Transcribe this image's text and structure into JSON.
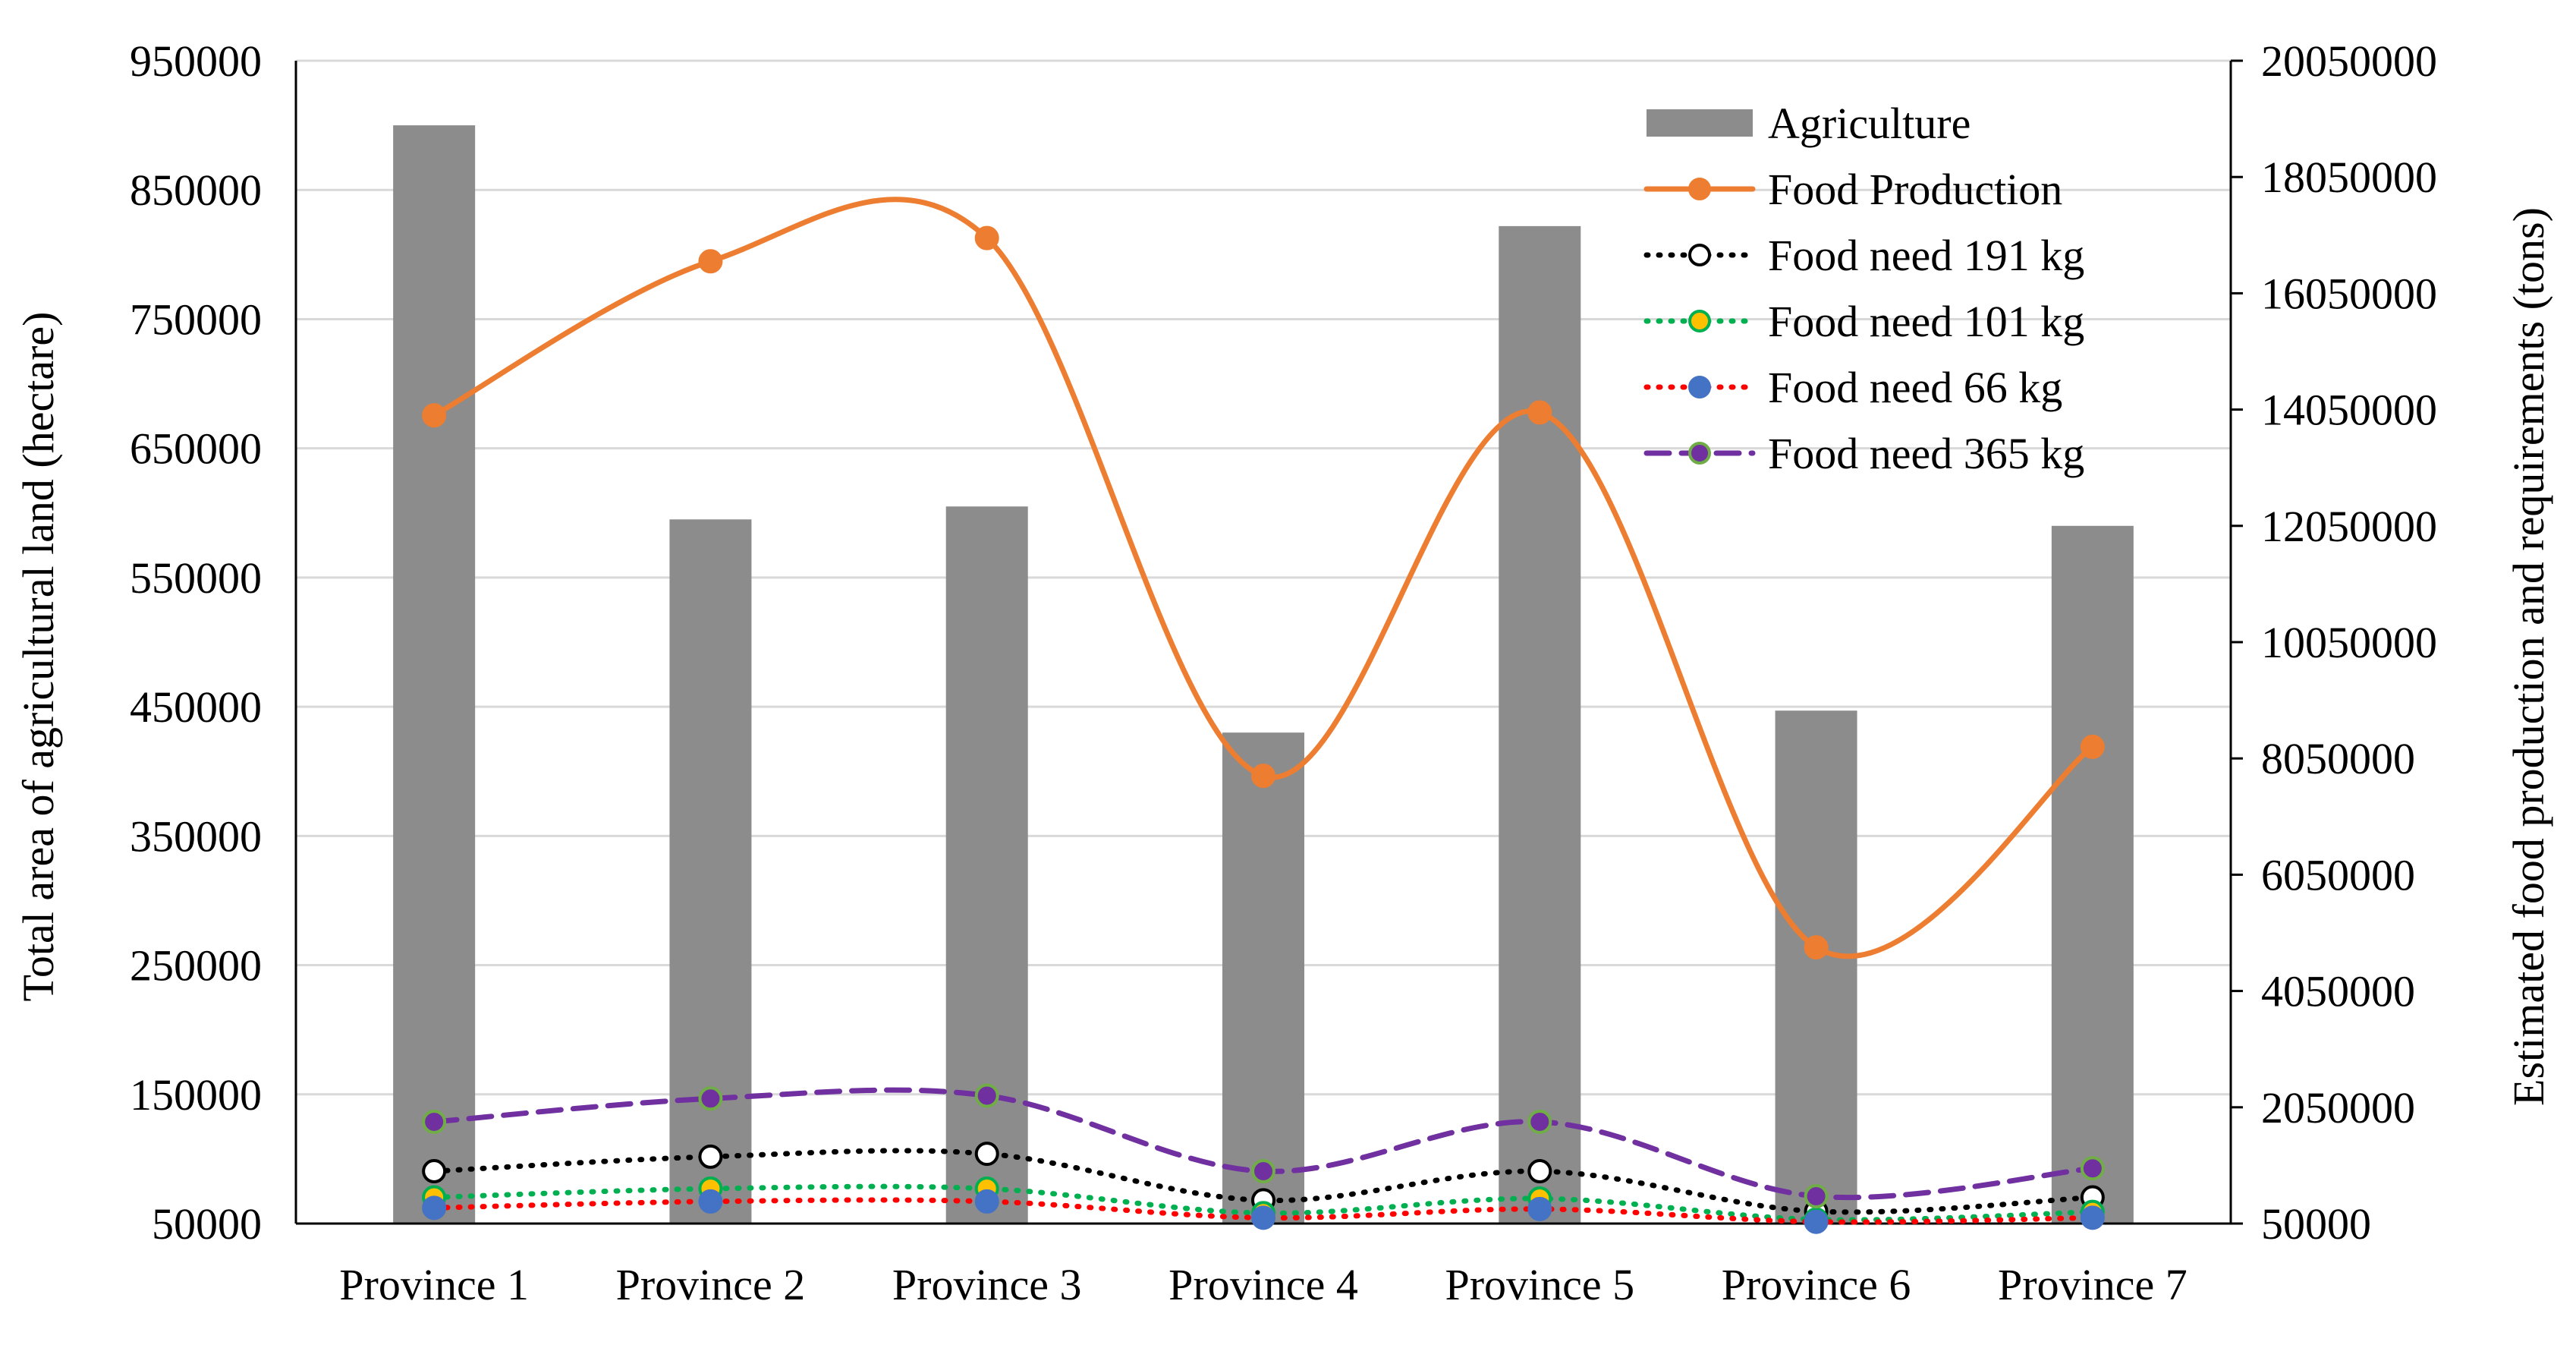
{
  "chart_data": {
    "type": "bar",
    "title": "",
    "xlabel": "",
    "ylabel": "Total area of agricultural land (hectare)",
    "y2label": "Estimated food production and requirements (tons)",
    "categories": [
      "Province 1",
      "Province 2",
      "Province 3",
      "Province 4",
      "Province 5",
      "Province 6",
      "Province 7"
    ],
    "ylim": [
      50000,
      950000
    ],
    "y_ticks": [
      "950000",
      "850000",
      "750000",
      "650000",
      "550000",
      "450000",
      "350000",
      "250000",
      "150000",
      "50000"
    ],
    "y2lim": [
      50000,
      20050000
    ],
    "y2_ticks": [
      "20050000",
      "18050000",
      "16050000",
      "14050000",
      "12050000",
      "10050000",
      "8050000",
      "6050000",
      "4050000",
      "2050000",
      "50000"
    ],
    "grid": true,
    "legend_position": "top-right",
    "series": [
      {
        "name": "Agriculture",
        "kind": "bar",
        "axis": "left",
        "color": "#8c8c8c",
        "values": [
          900000,
          595000,
          605000,
          430000,
          822000,
          447000,
          590000
        ]
      },
      {
        "name": "Food Production",
        "kind": "line",
        "axis": "right",
        "color": "#ed7d31",
        "marker_fill": "#ed7d31",
        "marker_stroke": "#ed7d31",
        "dash": "none",
        "values": [
          13950000,
          16600000,
          17000000,
          7750000,
          14000000,
          4800000,
          8250000
        ]
      },
      {
        "name": "Food need 191 kg",
        "kind": "line",
        "axis": "right",
        "color": "#000000",
        "marker_fill": "#ffffff",
        "marker_stroke": "#000000",
        "dash": "dot",
        "values": [
          950000,
          1200000,
          1250000,
          450000,
          950000,
          260000,
          500000
        ]
      },
      {
        "name": "Food need 101 kg",
        "kind": "line",
        "axis": "right",
        "color": "#00b050",
        "marker_fill": "#ffc000",
        "marker_stroke": "#00b050",
        "dash": "dot",
        "values": [
          500000,
          650000,
          650000,
          230000,
          480000,
          120000,
          250000
        ]
      },
      {
        "name": "Food need 66 kg",
        "kind": "line",
        "axis": "right",
        "color": "#ff0000",
        "marker_fill": "#4472c4",
        "marker_stroke": "#4472c4",
        "dash": "dot",
        "values": [
          320000,
          430000,
          430000,
          150000,
          300000,
          80000,
          150000
        ]
      },
      {
        "name": "Food need 365 kg",
        "kind": "line",
        "axis": "right",
        "color": "#7030a0",
        "marker_fill": "#7030a0",
        "marker_stroke": "#70ad47",
        "dash": "dash",
        "values": [
          1800000,
          2200000,
          2250000,
          950000,
          1800000,
          520000,
          1000000
        ]
      }
    ]
  }
}
